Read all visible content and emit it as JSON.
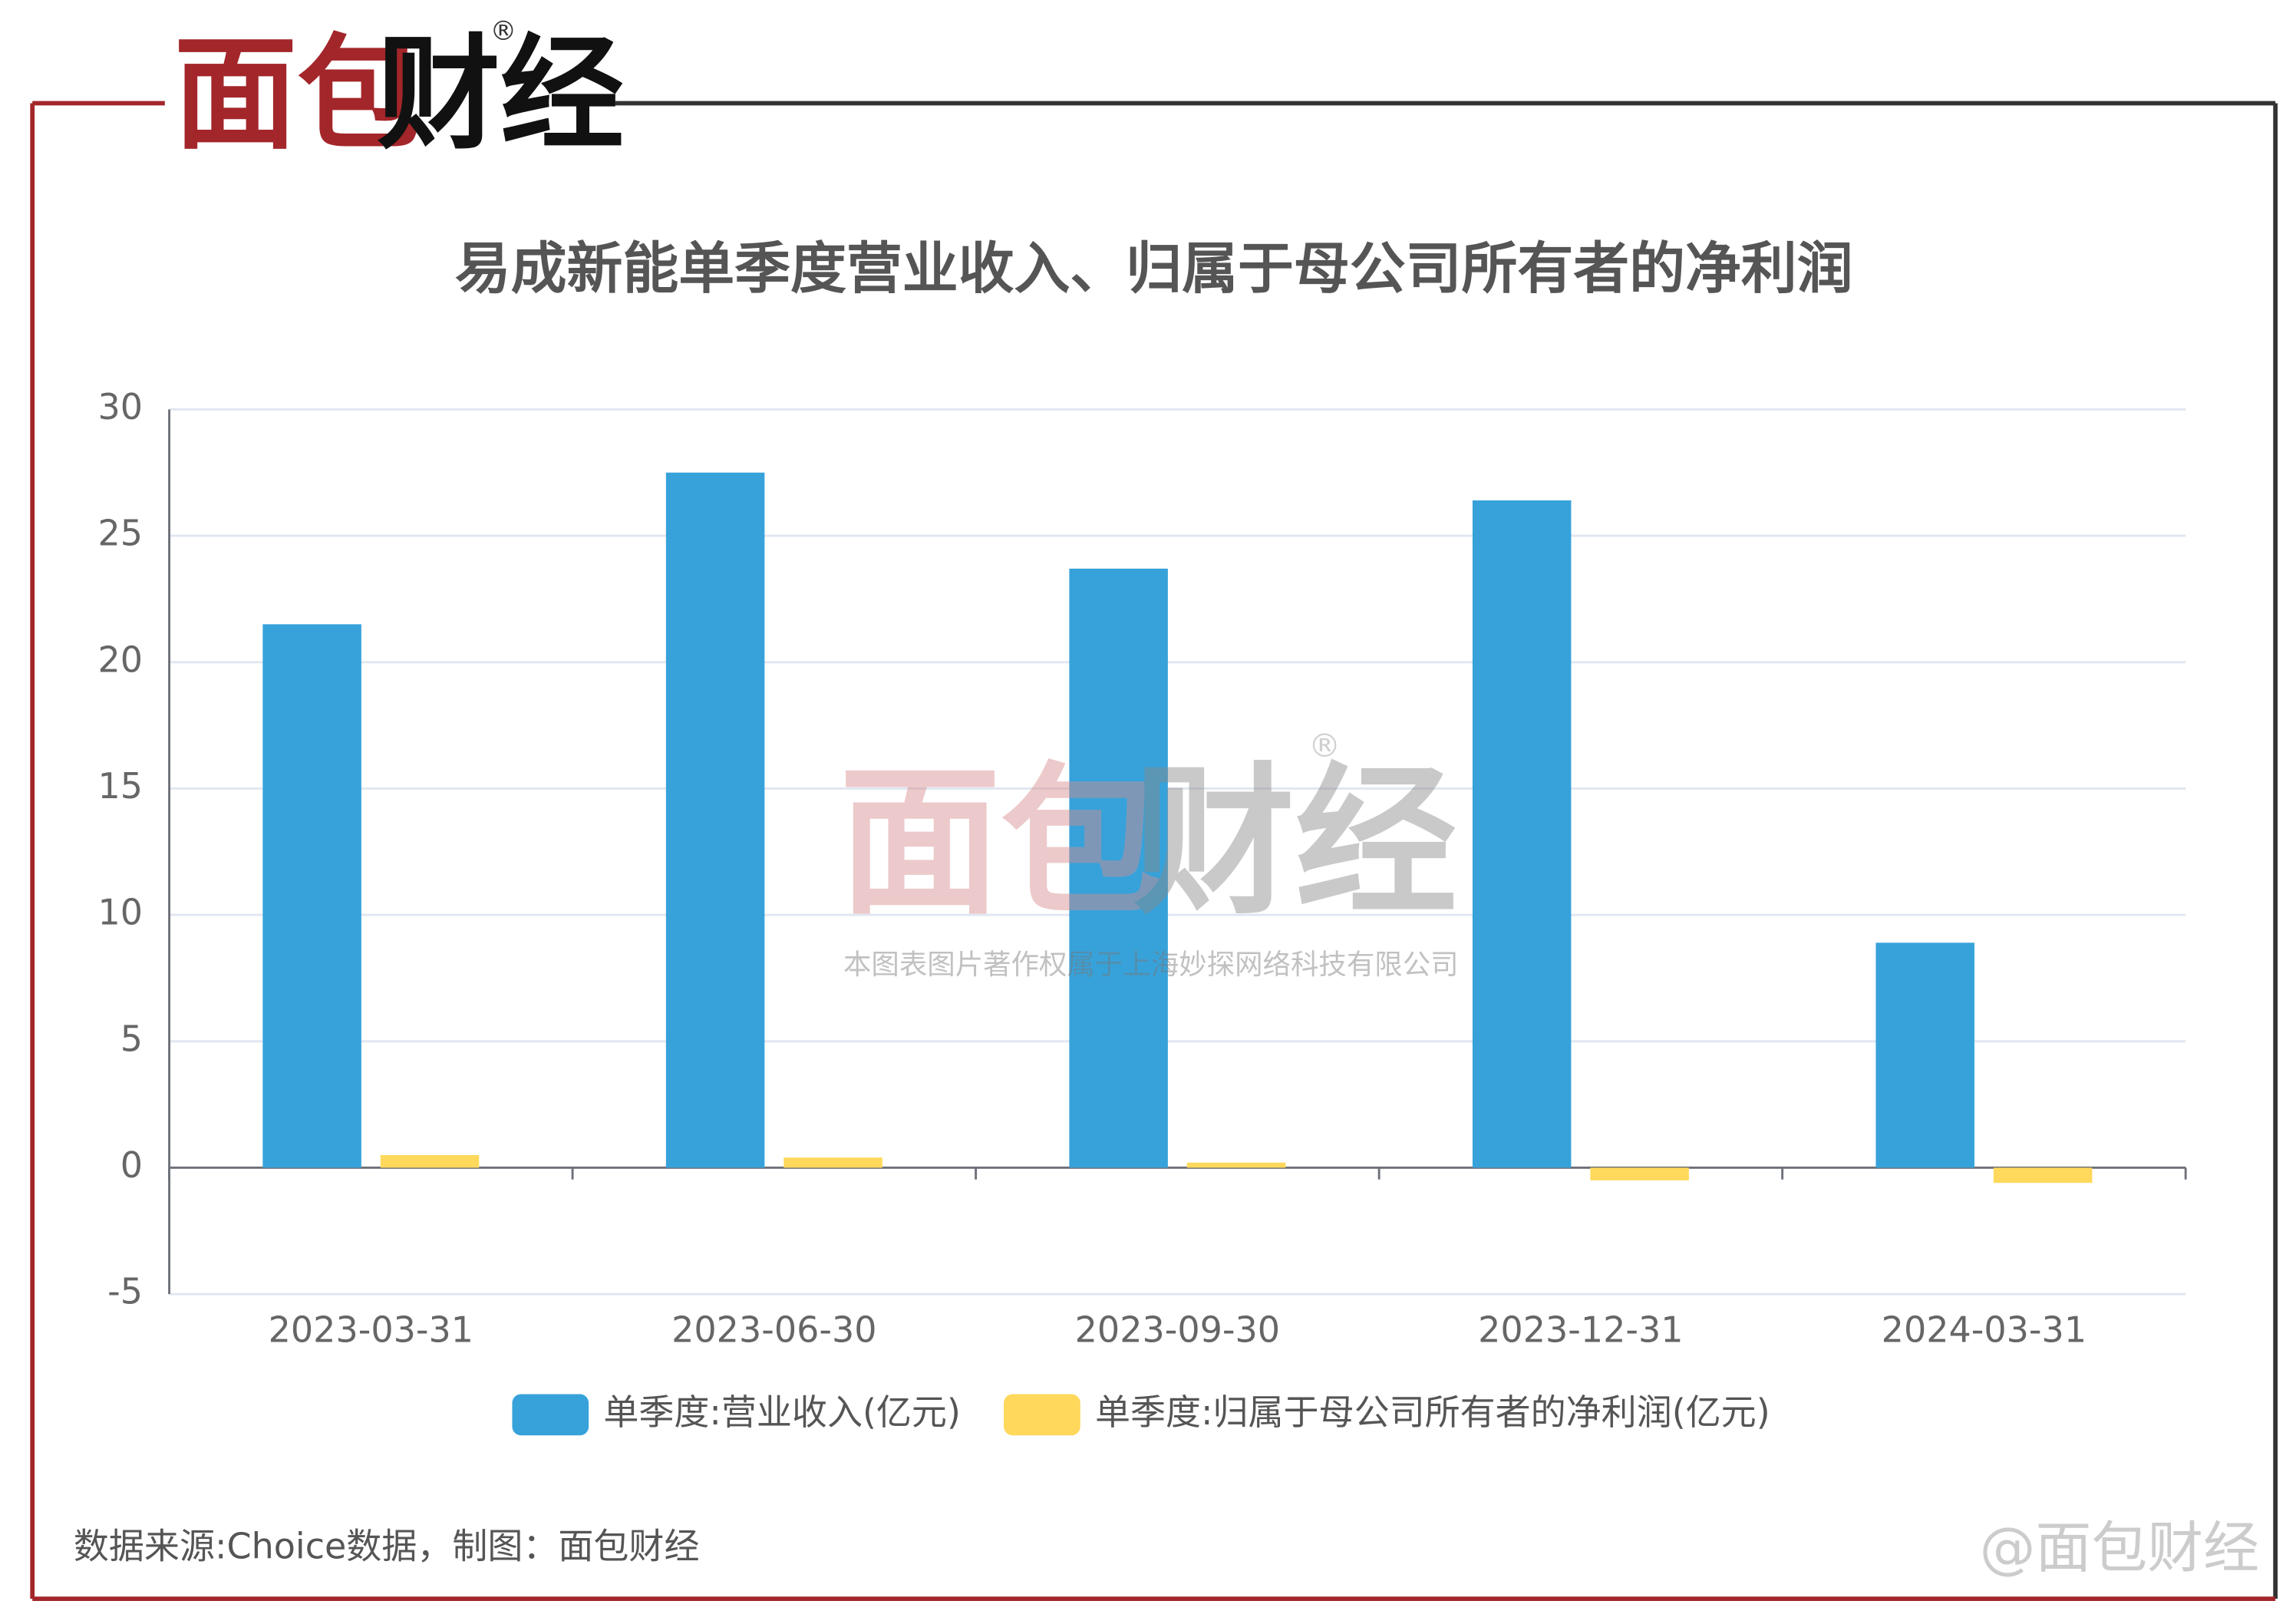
{
  "header": {
    "logo": [
      "面包",
      "财经"
    ],
    "mark": "®"
  },
  "chart_data": {
    "type": "bar",
    "title": "易成新能单季度营业收入、归属于母公司所有者的净利润",
    "categories": [
      "2023-03-31",
      "2023-06-30",
      "2023-09-30",
      "2023-12-31",
      "2024-03-31"
    ],
    "series": [
      {
        "name": "单季度:营业收入(亿元)",
        "color": "#37a2da",
        "values": [
          21.5,
          27.5,
          23.7,
          26.4,
          8.9
        ]
      },
      {
        "name": "单季度:归属于母公司所有者的净利润(亿元)",
        "color": "#ffd85c",
        "values": [
          0.5,
          0.4,
          0.2,
          -0.5,
          -0.6
        ]
      }
    ],
    "ylim": [
      -5,
      30
    ],
    "yticks": [
      -5,
      0,
      5,
      10,
      15,
      20,
      25,
      30
    ],
    "grid": true,
    "legend": "bottom"
  },
  "watermark": {
    "logo": [
      "面包",
      "财经"
    ],
    "mark": "®",
    "text": "本图表图片著作权属于上海妙探网络科技有限公司"
  },
  "footer": {
    "source": "数据来源:Choice数据，制图：面包财经",
    "credit": "@面包财经"
  }
}
